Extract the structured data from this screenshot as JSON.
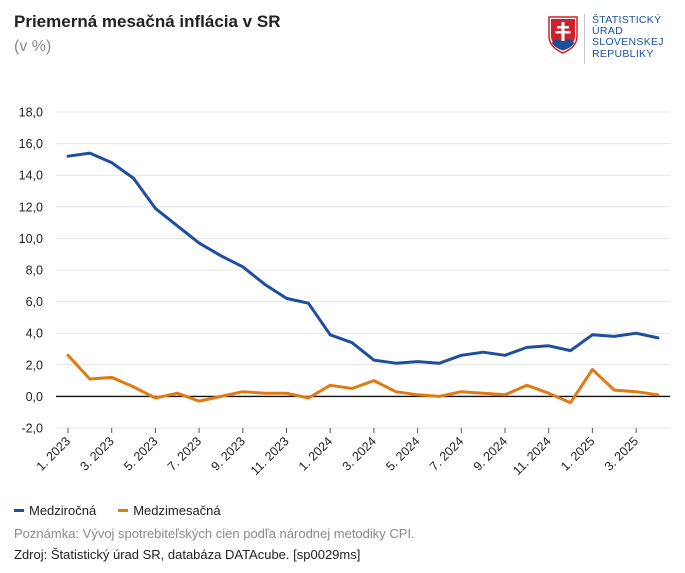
{
  "header": {
    "title": "Priemerná mesačná inflácia v SR",
    "subtitle": "(v %)"
  },
  "logo": {
    "lines": [
      "ŠTATISTICKÝ",
      "ÚRAD",
      "SLOVENSKEJ",
      "REPUBLIKY"
    ],
    "color": "#1a4f9c"
  },
  "chart_data": {
    "type": "line",
    "ylim": [
      -2.0,
      18.0
    ],
    "ytick_labels": [
      "-2,0",
      "0,0",
      "2,0",
      "4,0",
      "6,0",
      "8,0",
      "10,0",
      "12,0",
      "14,0",
      "16,0",
      "18,0"
    ],
    "x": [
      "1. 2023",
      "2. 2023",
      "3. 2023",
      "4. 2023",
      "5. 2023",
      "6. 2023",
      "7. 2023",
      "8. 2023",
      "9. 2023",
      "10. 2023",
      "11. 2023",
      "12. 2023",
      "1. 2024",
      "2. 2024",
      "3. 2024",
      "4. 2024",
      "5. 2024",
      "6. 2024",
      "7. 2024",
      "8. 2024",
      "9. 2024",
      "10. 2024",
      "11. 2024",
      "12. 2024",
      "1. 2025",
      "2. 2025",
      "3. 2025",
      "4. 2025"
    ],
    "xtick_labels": [
      "1. 2023",
      "3. 2023",
      "5. 2023",
      "7. 2023",
      "9. 2023",
      "11. 2023",
      "1. 2024",
      "3. 2024",
      "5. 2024",
      "7. 2024",
      "9. 2024",
      "11. 2024",
      "1. 2025",
      "3. 2025"
    ],
    "grid": true,
    "legend_position": "bottom-left",
    "series": [
      {
        "name": "Medziročná",
        "color": "#1f4e9c",
        "values": [
          15.2,
          15.4,
          14.8,
          13.8,
          11.9,
          10.8,
          9.7,
          8.9,
          8.2,
          7.1,
          6.2,
          5.9,
          3.9,
          3.4,
          2.3,
          2.1,
          2.2,
          2.1,
          2.6,
          2.8,
          2.6,
          3.1,
          3.2,
          2.9,
          3.9,
          3.8,
          4.0,
          3.7
        ]
      },
      {
        "name": "Medzimesačná",
        "color": "#e07b14",
        "values": [
          2.6,
          1.1,
          1.2,
          0.6,
          -0.1,
          0.2,
          -0.3,
          0.0,
          0.3,
          0.2,
          0.2,
          -0.1,
          0.7,
          0.5,
          1.0,
          0.3,
          0.1,
          0.0,
          0.3,
          0.2,
          0.1,
          0.7,
          0.2,
          -0.4,
          1.7,
          0.4,
          0.3,
          0.1
        ]
      }
    ]
  },
  "footer": {
    "note": "Poznámka: Vývoj spotrebiteľských cien podľa národnej metodiky CPI.",
    "source": "Zdroj: Štatistický úrad SR, databáza DATAcube. [sp0029ms]"
  }
}
